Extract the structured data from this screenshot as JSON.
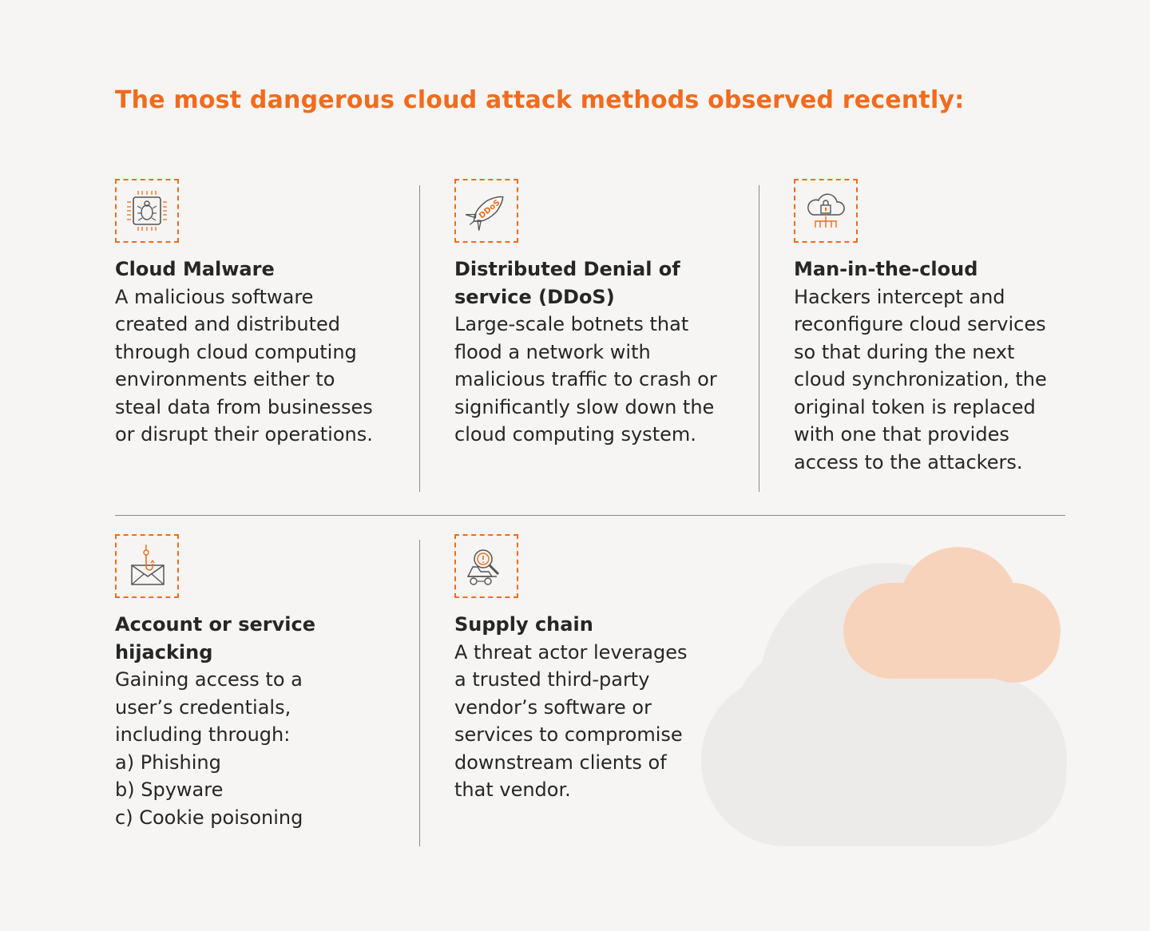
{
  "title": "The most dangerous cloud attack methods observed recently:",
  "colors": {
    "accent": "#f26b1d",
    "cloud_peach": "#f8d3bc",
    "cloud_grey": "#ecebe9"
  },
  "cards": [
    {
      "icon": "bug-chip-icon",
      "title": "Cloud Malware",
      "body": "A malicious software created and distributed through cloud computing environments either to steal data from businesses or disrupt their operations."
    },
    {
      "icon": "ddos-rocket-icon",
      "icon_text": "DDoS",
      "title": "Distributed Denial of service (DDoS)",
      "body": "Large-scale botnets that flood a network with malicious traffic to crash or significantly slow down the cloud computing system."
    },
    {
      "icon": "cloud-lock-icon",
      "title": "Man-in-the-cloud",
      "body": "Hackers intercept and reconfigure cloud services so that during the next cloud synchronization, the original token is replaced with one that provides access to the attackers."
    },
    {
      "icon": "fishhook-envelope-icon",
      "title": "Account or service hijacking",
      "body": "Gaining access to a user’s credentials, including through:",
      "list": [
        "a) Phishing",
        "b) Spyware",
        "c) Cookie poisoning"
      ]
    },
    {
      "icon": "magnifier-truck-icon",
      "title": "Supply chain",
      "body": "A threat actor leverages a trusted third-party vendor’s software or services to compromise downstream clients of that vendor."
    }
  ]
}
